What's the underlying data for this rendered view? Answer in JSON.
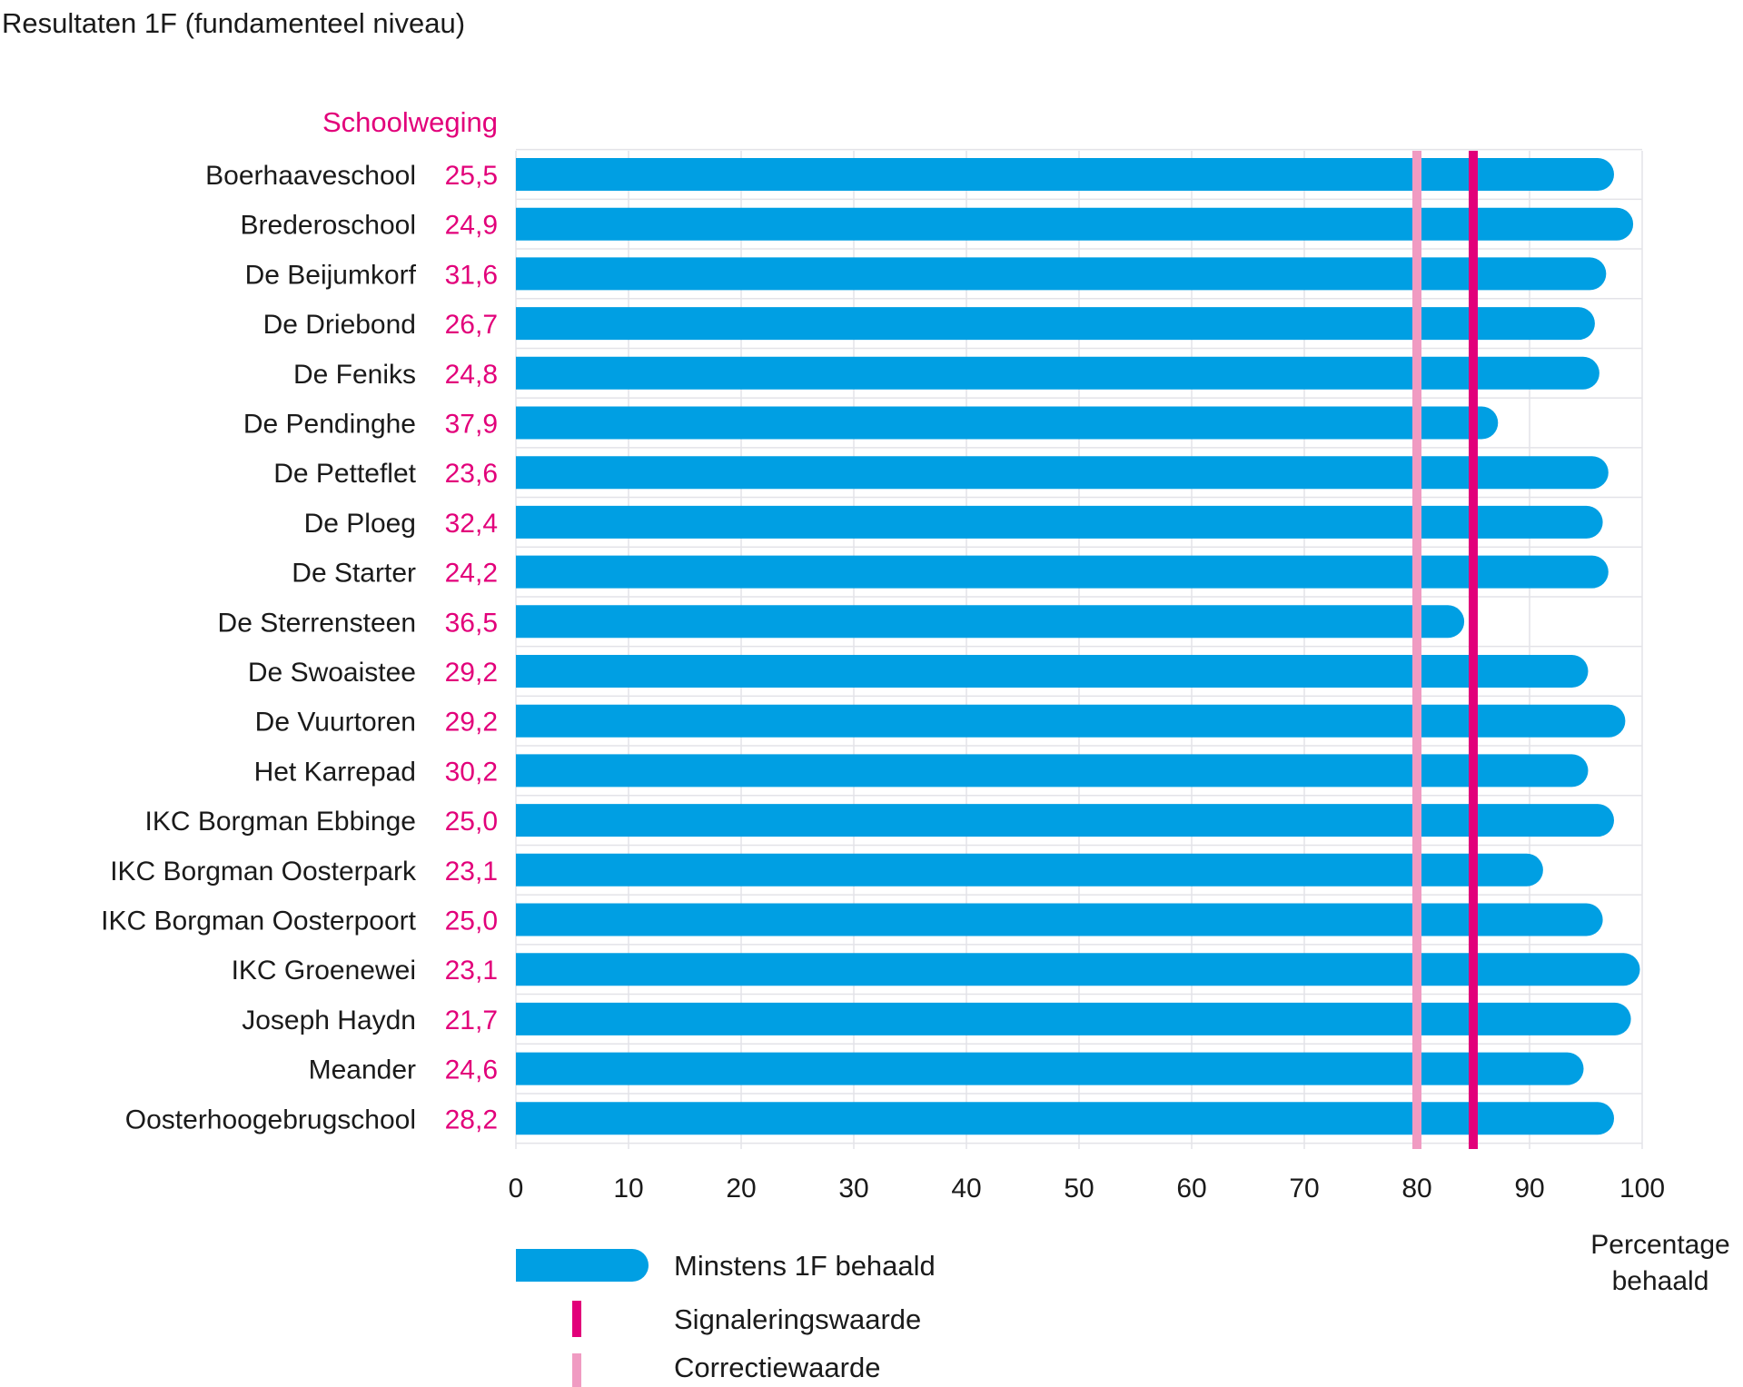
{
  "title": "Resultaten 1F (fundamenteel niveau)",
  "chart_data": {
    "type": "bar",
    "orientation": "horizontal",
    "weight_header": "Schoolweging",
    "categories": [
      "Boerhaaveschool",
      "Brederoschool",
      "De Beijumkorf",
      "De Driebond",
      "De Feniks",
      "De Pendinghe",
      "De Petteflet",
      "De Ploeg",
      "De Starter",
      "De Sterrensteen",
      "De Swoaistee",
      "De Vuurtoren",
      "Het Karrepad",
      "IKC Borgman Ebbinge",
      "IKC Borgman Oosterpark",
      "IKC Borgman Oosterpoort",
      "IKC Groenewei",
      "Joseph Haydn",
      "Meander",
      "Oosterhoogebrugschool"
    ],
    "schoolweging": [
      "25,5",
      "24,9",
      "31,6",
      "26,7",
      "24,8",
      "37,9",
      "23,6",
      "32,4",
      "24,2",
      "36,5",
      "29,2",
      "29,2",
      "30,2",
      "25,0",
      "23,1",
      "25,0",
      "23,1",
      "21,7",
      "24,6",
      "28,2"
    ],
    "series": [
      {
        "name": "Minstens 1F behaald",
        "values": [
          97.5,
          99.2,
          96.8,
          95.8,
          96.2,
          87.2,
          97.0,
          96.5,
          97.0,
          84.2,
          95.2,
          98.5,
          95.2,
          97.5,
          91.2,
          96.5,
          99.8,
          99.0,
          94.8,
          97.5
        ]
      }
    ],
    "reference_lines": [
      {
        "name": "Signaleringswaarde",
        "value": 85
      },
      {
        "name": "Correctiewaarde",
        "value": 80
      }
    ],
    "xlim": [
      0,
      100
    ],
    "xticks": [
      "0",
      "10",
      "20",
      "30",
      "40",
      "50",
      "60",
      "70",
      "80",
      "90",
      "100"
    ],
    "xlabel": "Percentage behaald",
    "grid": true,
    "legend_position": "bottom-left",
    "colors": {
      "bar": "#009fe3",
      "signalering": "#e2007a",
      "correctie": "#f09bc2",
      "weight_text": "#e2007a",
      "grid": "#e3e3e8"
    }
  }
}
